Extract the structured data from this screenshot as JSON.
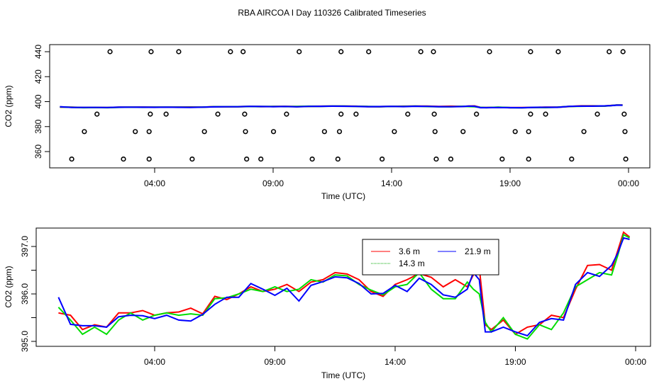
{
  "title": "RBA AIRCOA I  Day 110326  Calibrated Timeseries",
  "colors": {
    "3.6 m": "#ff0000",
    "14.3 m": "#00dd00",
    "21.9 m": "#0000ff",
    "markers": "#000000"
  },
  "chart_data": [
    {
      "type": "line",
      "xlabel": "Time (UTC)",
      "ylabel": "CO2 (ppm)",
      "xticks": [
        "04:00",
        "09:00",
        "14:00",
        "19:00",
        "00:00"
      ],
      "yticks": [
        "360",
        "380",
        "400",
        "420",
        "440"
      ],
      "ylim": [
        346,
        445
      ],
      "grid": false,
      "series_lines_ref": "shared_series",
      "markers": {
        "shape": "open-circle",
        "points": [
          {
            "value": 440,
            "times": [
              "02:07",
              "03:51",
              "05:01",
              "07:12",
              "07:44",
              "10:06",
              "11:52",
              "13:02",
              "15:14",
              "15:46",
              "18:08",
              "19:52",
              "21:02",
              "23:11",
              "23:46"
            ]
          },
          {
            "value": 390,
            "times": [
              "01:34",
              "03:49",
              "04:29",
              "06:40",
              "07:48",
              "09:34",
              "11:52",
              "12:30",
              "14:41",
              "15:48",
              "17:35",
              "19:52",
              "20:30",
              "22:41",
              "23:49"
            ]
          },
          {
            "value": 376,
            "times": [
              "01:02",
              "03:11",
              "03:46",
              "06:06",
              "07:50",
              "09:01",
              "11:10",
              "11:48",
              "14:07",
              "15:50",
              "17:01",
              "19:13",
              "19:47",
              "22:07",
              "23:51"
            ]
          },
          {
            "value": 354,
            "times": [
              "00:30",
              "02:41",
              "03:46",
              "05:35",
              "07:53",
              "08:29",
              "10:39",
              "11:44",
              "13:36",
              "15:53",
              "16:30",
              "18:40",
              "19:47",
              "21:36",
              "23:53"
            ]
          }
        ]
      }
    },
    {
      "type": "line",
      "xlabel": "Time (UTC)",
      "ylabel": "CO2 (ppm)",
      "xticks": [
        "04:00",
        "09:00",
        "14:00",
        "19:00",
        "00:00"
      ],
      "yticks": [
        "395.0",
        "396.0",
        "397.0"
      ],
      "ylim": [
        394.9,
        397.4
      ],
      "grid": false,
      "legend": {
        "placement": "top-center",
        "entries": [
          "3.6 m",
          "21.9 m",
          "14.3 m"
        ]
      },
      "series_lines_ref": "shared_series"
    }
  ],
  "shared_series": {
    "x": [
      "00:00",
      "00:30",
      "01:00",
      "01:30",
      "02:00",
      "02:30",
      "03:00",
      "03:30",
      "04:00",
      "04:30",
      "05:00",
      "05:30",
      "06:00",
      "06:30",
      "07:00",
      "07:30",
      "08:00",
      "08:30",
      "09:00",
      "09:30",
      "10:00",
      "10:30",
      "11:00",
      "11:30",
      "12:00",
      "12:30",
      "13:00",
      "13:30",
      "14:00",
      "14:30",
      "15:00",
      "15:30",
      "16:00",
      "16:30",
      "17:00",
      "17:15",
      "17:30",
      "17:45",
      "18:00",
      "18:30",
      "19:00",
      "19:30",
      "20:00",
      "20:30",
      "21:00",
      "21:30",
      "22:00",
      "22:30",
      "23:00",
      "23:15",
      "23:30",
      "23:45"
    ],
    "series": [
      {
        "name": "3.6 m",
        "style": "solid",
        "values": [
          395.6,
          395.55,
          395.25,
          395.35,
          395.3,
          395.6,
          395.6,
          395.65,
          395.55,
          395.6,
          395.62,
          395.7,
          395.58,
          395.95,
          395.88,
          396.0,
          396.15,
          396.05,
          396.1,
          396.2,
          396.05,
          396.25,
          396.3,
          396.45,
          396.42,
          396.3,
          396.05,
          395.95,
          396.2,
          396.3,
          396.43,
          396.35,
          396.15,
          396.3,
          396.15,
          396.4,
          396.55,
          395.35,
          395.25,
          395.45,
          395.15,
          395.3,
          395.35,
          395.55,
          395.5,
          396.1,
          396.6,
          396.62,
          396.5,
          396.9,
          397.3,
          397.2
        ]
      },
      {
        "name": "14.3 m",
        "style": "dotted",
        "values": [
          395.72,
          395.45,
          395.15,
          395.3,
          395.15,
          395.45,
          395.6,
          395.45,
          395.55,
          395.6,
          395.55,
          395.58,
          395.55,
          395.9,
          395.92,
          396.0,
          396.1,
          396.05,
          396.15,
          396.05,
          396.1,
          396.3,
          396.25,
          396.4,
          396.38,
          396.2,
          396.08,
          395.98,
          396.15,
          396.2,
          396.45,
          396.1,
          395.9,
          395.9,
          396.25,
          396.1,
          396.0,
          395.4,
          395.2,
          395.5,
          395.15,
          395.05,
          395.35,
          395.25,
          395.6,
          396.15,
          396.3,
          396.45,
          396.4,
          396.8,
          397.25,
          397.18
        ]
      },
      {
        "name": "21.9 m",
        "style": "solid",
        "values": [
          395.93,
          395.36,
          395.33,
          395.33,
          395.3,
          395.52,
          395.55,
          395.54,
          395.48,
          395.55,
          395.45,
          395.43,
          395.57,
          395.78,
          395.93,
          395.93,
          396.22,
          396.1,
          395.97,
          396.12,
          395.85,
          396.18,
          396.26,
          396.36,
          396.34,
          396.22,
          396.0,
          396.01,
          396.18,
          396.05,
          396.33,
          396.2,
          395.98,
          395.93,
          396.1,
          396.45,
          396.3,
          395.2,
          395.2,
          395.3,
          395.2,
          395.12,
          395.4,
          395.48,
          395.45,
          396.2,
          396.45,
          396.37,
          396.6,
          396.85,
          397.18,
          397.15
        ]
      }
    ]
  }
}
